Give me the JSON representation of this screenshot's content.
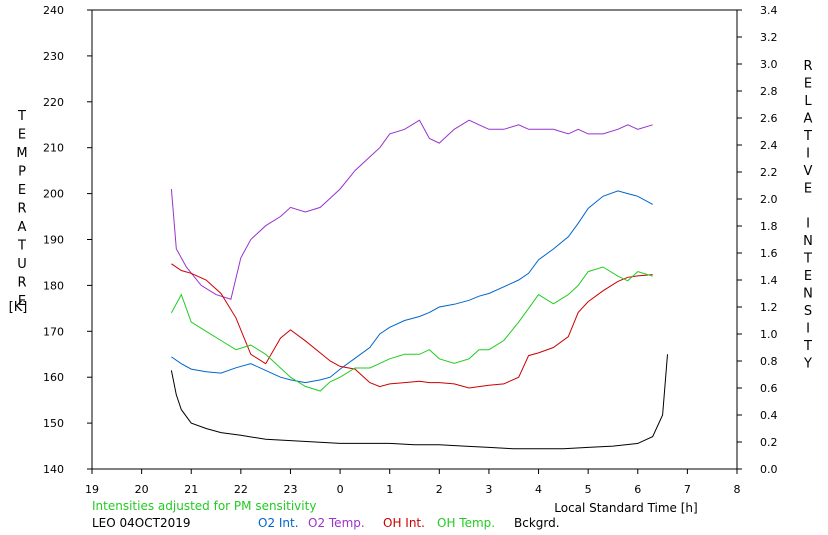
{
  "chart_data": {
    "type": "line",
    "left_axis": {
      "label": "TEMPERATURE",
      "unit": "[K]",
      "ylim": [
        140,
        240
      ],
      "ticks": [
        "140",
        "150",
        "160",
        "170",
        "180",
        "190",
        "200",
        "210",
        "220",
        "230",
        "240"
      ]
    },
    "right_axis": {
      "label": "RELATIVE INTENSITY",
      "ylim": [
        0.0,
        3.4
      ],
      "ticks": [
        "0.0",
        "0.2",
        "0.4",
        "0.6",
        "0.8",
        "1.0",
        "1.2",
        "1.4",
        "1.6",
        "1.8",
        "2.0",
        "2.2",
        "2.4",
        "2.6",
        "2.8",
        "3.0",
        "3.2",
        "3.4"
      ]
    },
    "x_axis": {
      "label": "Local Standard Time [h]",
      "xlim": [
        19,
        32
      ],
      "ticks": [
        "19",
        "20",
        "21",
        "22",
        "23",
        "0",
        "1",
        "2",
        "3",
        "4",
        "5",
        "6",
        "7",
        "8"
      ]
    },
    "note": "Intensities adjusted for PM sensitivity",
    "site_date": "LEO 04OCT2019",
    "legend": [
      {
        "name": "O2 Int.",
        "color": "#0066cc"
      },
      {
        "name": "O2 Temp.",
        "color": "#9933cc"
      },
      {
        "name": "OH Int.",
        "color": "#cc0000"
      },
      {
        "name": "OH Temp.",
        "color": "#22cc22"
      },
      {
        "name": "Bckgrd.",
        "color": "#000000"
      }
    ],
    "series": [
      {
        "name": "O2 Temp.",
        "axis": "left",
        "color": "#9933cc",
        "x": [
          20.6,
          20.7,
          20.9,
          21.2,
          21.5,
          21.8,
          22.0,
          22.2,
          22.5,
          22.8,
          23.0,
          23.3,
          23.6,
          23.8,
          24.0,
          24.3,
          24.6,
          24.8,
          25.0,
          25.3,
          25.6,
          25.8,
          26.0,
          26.3,
          26.6,
          26.8,
          27.0,
          27.3,
          27.6,
          27.8,
          28.0,
          28.3,
          28.6,
          28.8,
          29.0,
          29.3,
          29.6,
          29.8,
          30.0,
          30.3
        ],
        "y": [
          201,
          188,
          184,
          180,
          178,
          177,
          186,
          190,
          193,
          195,
          197,
          196,
          197,
          199,
          201,
          205,
          208,
          210,
          213,
          214,
          216,
          212,
          211,
          214,
          216,
          215,
          214,
          214,
          215,
          214,
          214,
          214,
          213,
          214,
          213,
          213,
          214,
          215,
          214,
          215
        ]
      },
      {
        "name": "O2 Int.",
        "axis": "right",
        "color": "#0066cc",
        "x": [
          20.6,
          20.8,
          21.0,
          21.3,
          21.6,
          21.9,
          22.2,
          22.5,
          22.8,
          23.0,
          23.3,
          23.6,
          23.8,
          24.0,
          24.3,
          24.6,
          24.8,
          25.0,
          25.3,
          25.6,
          25.8,
          26.0,
          26.3,
          26.6,
          26.8,
          27.0,
          27.3,
          27.6,
          27.8,
          28.0,
          28.3,
          28.6,
          28.8,
          29.0,
          29.3,
          29.6,
          29.8,
          30.0,
          30.3
        ],
        "y": [
          0.83,
          0.78,
          0.74,
          0.72,
          0.71,
          0.75,
          0.78,
          0.73,
          0.68,
          0.66,
          0.64,
          0.66,
          0.68,
          0.74,
          0.82,
          0.9,
          1.0,
          1.05,
          1.1,
          1.13,
          1.16,
          1.2,
          1.22,
          1.25,
          1.28,
          1.3,
          1.35,
          1.4,
          1.45,
          1.55,
          1.63,
          1.72,
          1.82,
          1.93,
          2.02,
          2.06,
          2.04,
          2.02,
          1.96
        ]
      },
      {
        "name": "OH Int.",
        "axis": "right",
        "color": "#cc0000",
        "x": [
          20.6,
          20.8,
          21.0,
          21.3,
          21.6,
          21.9,
          22.2,
          22.5,
          22.8,
          23.0,
          23.3,
          23.6,
          23.8,
          24.0,
          24.3,
          24.6,
          24.8,
          25.0,
          25.3,
          25.6,
          25.8,
          26.0,
          26.3,
          26.6,
          26.8,
          27.0,
          27.3,
          27.6,
          27.8,
          28.0,
          28.3,
          28.6,
          28.8,
          29.0,
          29.3,
          29.6,
          29.8,
          30.0,
          30.3
        ],
        "y": [
          1.52,
          1.47,
          1.45,
          1.4,
          1.3,
          1.12,
          0.85,
          0.78,
          0.97,
          1.03,
          0.95,
          0.86,
          0.8,
          0.76,
          0.74,
          0.64,
          0.61,
          0.63,
          0.64,
          0.65,
          0.64,
          0.64,
          0.63,
          0.6,
          0.61,
          0.62,
          0.63,
          0.68,
          0.84,
          0.86,
          0.9,
          0.98,
          1.16,
          1.24,
          1.32,
          1.39,
          1.42,
          1.43,
          1.44
        ]
      },
      {
        "name": "OH Temp.",
        "axis": "left",
        "color": "#22cc22",
        "x": [
          20.6,
          20.8,
          21.0,
          21.3,
          21.6,
          21.9,
          22.2,
          22.5,
          22.8,
          23.0,
          23.3,
          23.6,
          23.8,
          24.0,
          24.3,
          24.6,
          24.8,
          25.0,
          25.3,
          25.6,
          25.8,
          26.0,
          26.3,
          26.6,
          26.8,
          27.0,
          27.3,
          27.6,
          27.8,
          28.0,
          28.3,
          28.6,
          28.8,
          29.0,
          29.3,
          29.6,
          29.8,
          30.0,
          30.3
        ],
        "y": [
          174,
          178,
          172,
          170,
          168,
          166,
          167,
          165,
          162,
          160,
          158,
          157,
          159,
          160,
          162,
          162,
          163,
          164,
          165,
          165,
          166,
          164,
          163,
          164,
          166,
          166,
          168,
          172,
          175,
          178,
          176,
          178,
          180,
          183,
          184,
          182,
          181,
          183,
          182
        ]
      },
      {
        "name": "Bckgrd.",
        "axis": "right",
        "color": "#000000",
        "x": [
          20.6,
          20.7,
          20.8,
          21.0,
          21.3,
          21.6,
          22.0,
          22.5,
          23.0,
          23.5,
          24.0,
          24.5,
          25.0,
          25.5,
          26.0,
          26.5,
          27.0,
          27.5,
          28.0,
          28.5,
          29.0,
          29.5,
          30.0,
          30.3,
          30.5,
          30.6
        ],
        "y": [
          0.73,
          0.55,
          0.44,
          0.34,
          0.3,
          0.27,
          0.25,
          0.22,
          0.21,
          0.2,
          0.19,
          0.19,
          0.19,
          0.18,
          0.18,
          0.17,
          0.16,
          0.15,
          0.15,
          0.15,
          0.16,
          0.17,
          0.19,
          0.24,
          0.4,
          0.85
        ]
      }
    ]
  }
}
